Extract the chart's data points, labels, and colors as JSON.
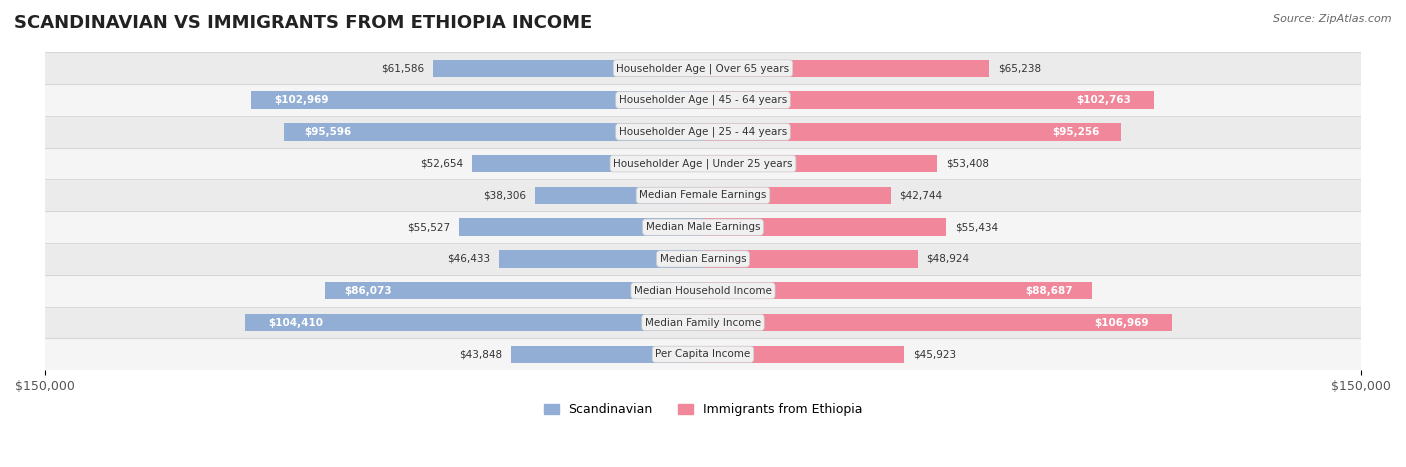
{
  "title": "SCANDINAVIAN VS IMMIGRANTS FROM ETHIOPIA INCOME",
  "source": "Source: ZipAtlas.com",
  "categories": [
    "Per Capita Income",
    "Median Family Income",
    "Median Household Income",
    "Median Earnings",
    "Median Male Earnings",
    "Median Female Earnings",
    "Householder Age | Under 25 years",
    "Householder Age | 25 - 44 years",
    "Householder Age | 45 - 64 years",
    "Householder Age | Over 65 years"
  ],
  "scandinavian_values": [
    43848,
    104410,
    86073,
    46433,
    55527,
    38306,
    52654,
    95596,
    102969,
    61586
  ],
  "ethiopia_values": [
    45923,
    106969,
    88687,
    48924,
    55434,
    42744,
    53408,
    95256,
    102763,
    65238
  ],
  "scandinavian_labels": [
    "$43,848",
    "$104,410",
    "$86,073",
    "$46,433",
    "$55,527",
    "$38,306",
    "$52,654",
    "$95,596",
    "$102,969",
    "$61,586"
  ],
  "ethiopia_labels": [
    "$45,923",
    "$106,969",
    "$88,687",
    "$48,924",
    "$55,434",
    "$42,744",
    "$53,408",
    "$95,256",
    "$102,763",
    "$65,238"
  ],
  "max_value": 150000,
  "scandinavian_color": "#92aed4",
  "ethiopia_color": "#f0879a",
  "scandinavian_color_dark": "#6a8cbf",
  "ethiopia_color_dark": "#e85c7a",
  "label_bg_color": "#f0f0f0",
  "row_bg_color": "#f5f5f5",
  "row_bg_alt": "#ebebeb",
  "title_fontsize": 13,
  "bar_height": 0.55,
  "legend_scand": "Scandinavian",
  "legend_eth": "Immigrants from Ethiopia"
}
